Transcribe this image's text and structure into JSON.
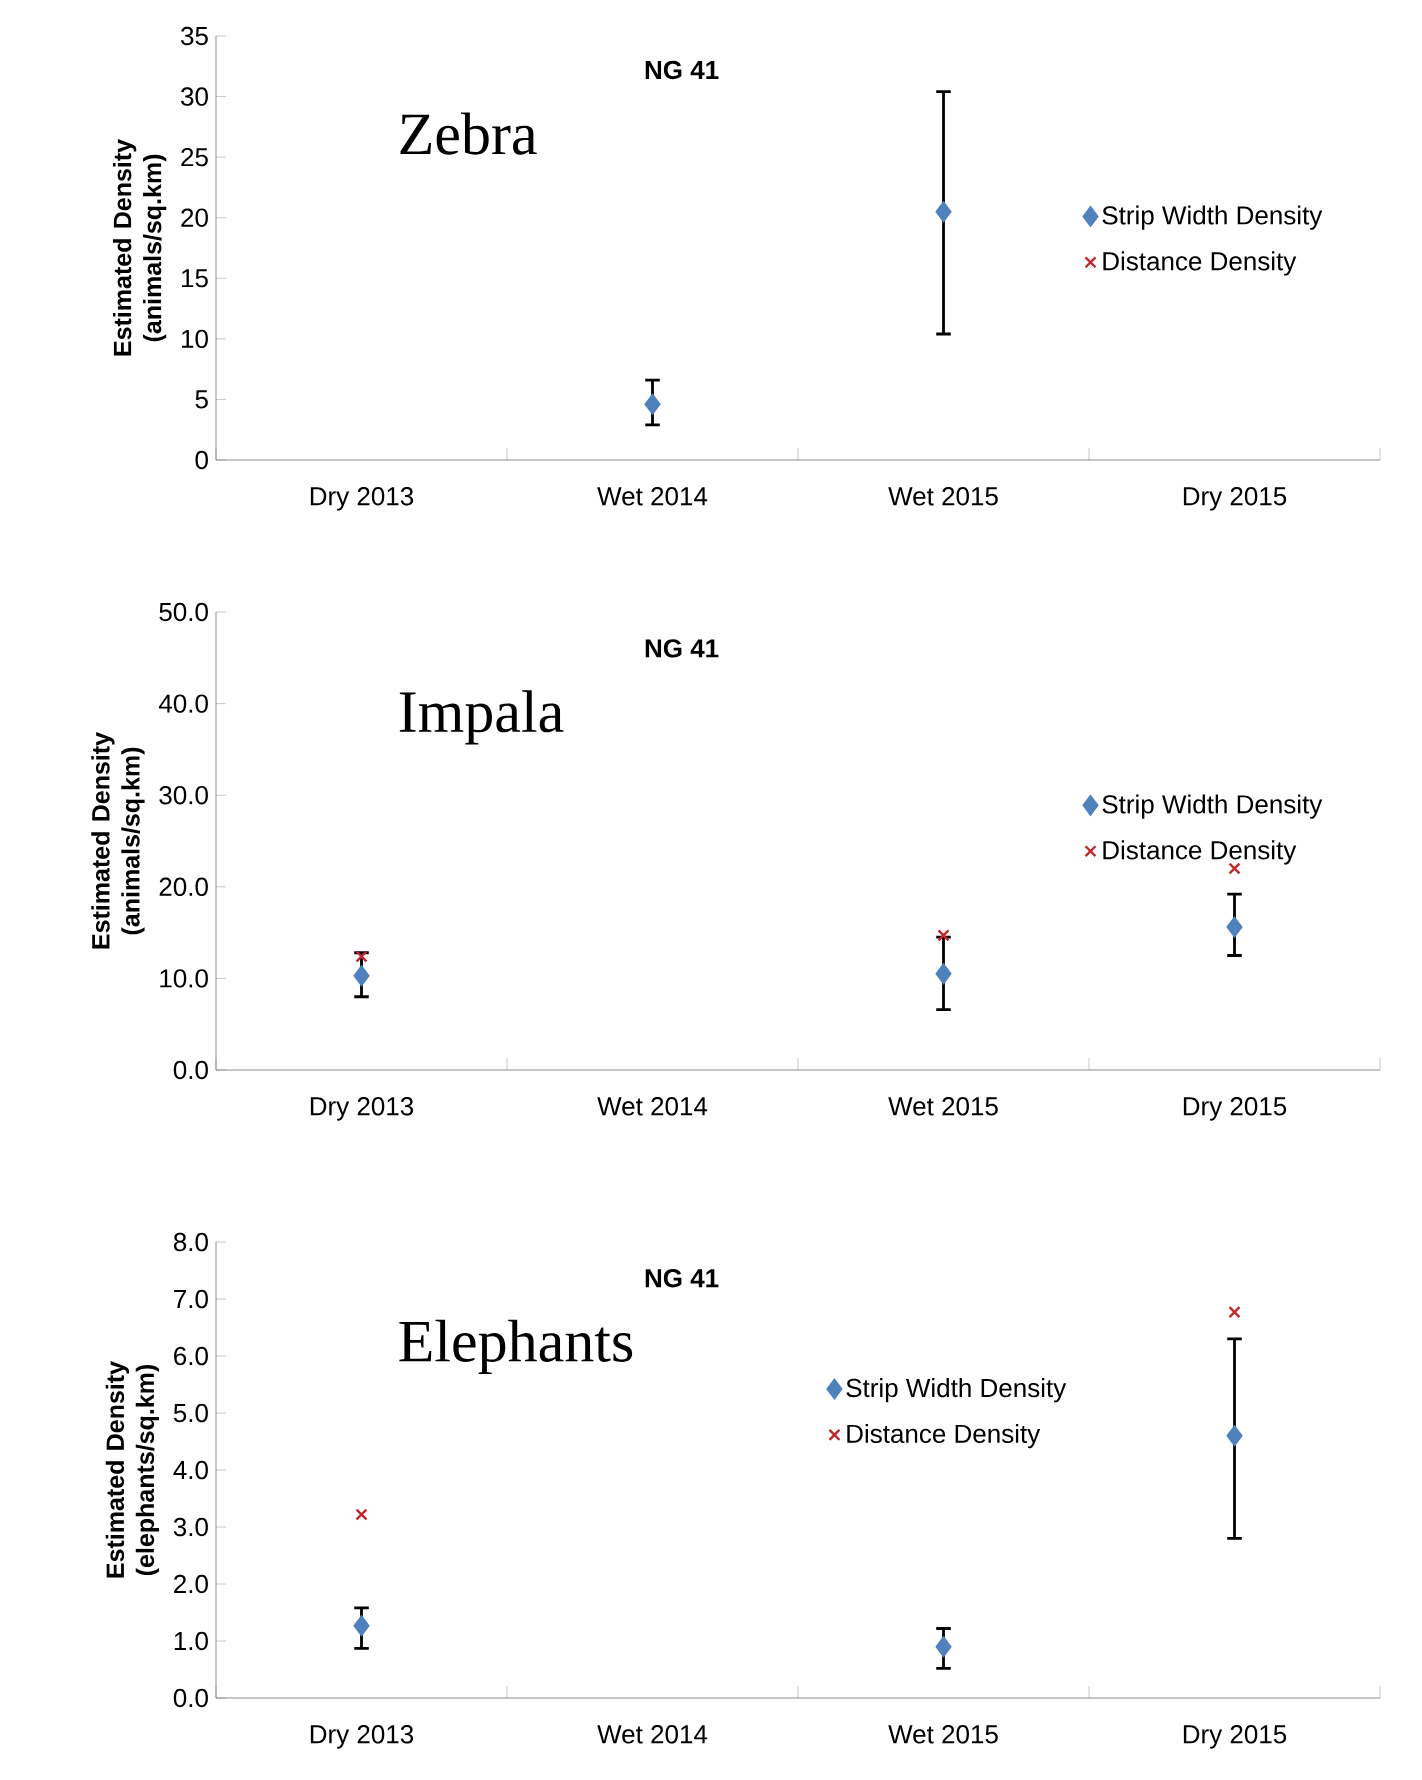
{
  "chart_data": [
    {
      "type": "scatter",
      "title": "NG 41",
      "ylabel": "Estimated Density (animals/sq.km)",
      "annotations": [
        "Zebra"
      ],
      "categories": [
        "Dry 2013",
        "Wet 2014",
        "Wet 2015",
        "Dry 2015"
      ],
      "ylim": [
        0,
        35
      ],
      "yticks": [
        0,
        5,
        10,
        15,
        20,
        25,
        30,
        35
      ],
      "legend": "right",
      "series": [
        {
          "name": "Strip Width Density",
          "color": "#4f81bd",
          "marker": "diamond",
          "values": [
            null,
            4.6,
            20.5,
            null
          ],
          "errors": [
            null,
            [
              2.9,
              6.6
            ],
            [
              10.4,
              30.4
            ],
            null
          ]
        },
        {
          "name": "Distance Density",
          "color": "#c0282d",
          "marker": "cross",
          "values": [
            null,
            null,
            null,
            null
          ]
        }
      ]
    },
    {
      "type": "scatter",
      "title": "NG 41",
      "ylabel": "Estimated Density (animals/sq.km)",
      "annotations": [
        "Impala"
      ],
      "categories": [
        "Dry 2013",
        "Wet 2014",
        "Wet 2015",
        "Dry 2015"
      ],
      "ylim": [
        0,
        50
      ],
      "yticks": [
        {
          "value": 0,
          "label": "0.0"
        },
        {
          "value": 10,
          "label": "10.0"
        },
        {
          "value": 20,
          "label": "20.0"
        },
        {
          "value": 30,
          "label": "30.0"
        },
        {
          "value": 40,
          "label": "40.0"
        },
        {
          "value": 50,
          "label": "50.0"
        }
      ],
      "legend": "right",
      "series": [
        {
          "name": "Strip Width Density",
          "color": "#4f81bd",
          "marker": "diamond",
          "values": [
            10.3,
            null,
            10.5,
            15.6
          ],
          "errors": [
            [
              8.0,
              12.8
            ],
            null,
            [
              6.6,
              14.5
            ],
            [
              12.5,
              19.2
            ]
          ]
        },
        {
          "name": "Distance Density",
          "color": "#c0282d",
          "marker": "cross",
          "values": [
            12.4,
            null,
            14.7,
            22.0
          ]
        }
      ]
    },
    {
      "type": "scatter",
      "title": "NG 41",
      "ylabel": "Estimated Density (elephants/sq.km)",
      "annotations": [
        "Elephants"
      ],
      "categories": [
        "Dry 2013",
        "Wet 2014",
        "Wet 2015",
        "Dry 2015"
      ],
      "ylim": [
        0,
        8
      ],
      "yticks": [
        {
          "value": 0,
          "label": "0.0"
        },
        {
          "value": 1,
          "label": "1.0"
        },
        {
          "value": 2,
          "label": "2.0"
        },
        {
          "value": 3,
          "label": "3.0"
        },
        {
          "value": 4,
          "label": "4.0"
        },
        {
          "value": 5,
          "label": "5.0"
        },
        {
          "value": 6,
          "label": "6.0"
        },
        {
          "value": 7,
          "label": "7.0"
        },
        {
          "value": 8,
          "label": "8.0"
        }
      ],
      "legend": "center",
      "series": [
        {
          "name": "Strip Width Density",
          "color": "#4f81bd",
          "marker": "diamond",
          "values": [
            1.27,
            null,
            0.9,
            4.6
          ],
          "errors": [
            [
              0.87,
              1.58
            ],
            null,
            [
              0.52,
              1.22
            ],
            [
              2.8,
              6.3
            ]
          ]
        },
        {
          "name": "Distance Density",
          "color": "#c0282d",
          "marker": "cross",
          "values": [
            3.22,
            null,
            null,
            6.77
          ]
        }
      ]
    }
  ]
}
